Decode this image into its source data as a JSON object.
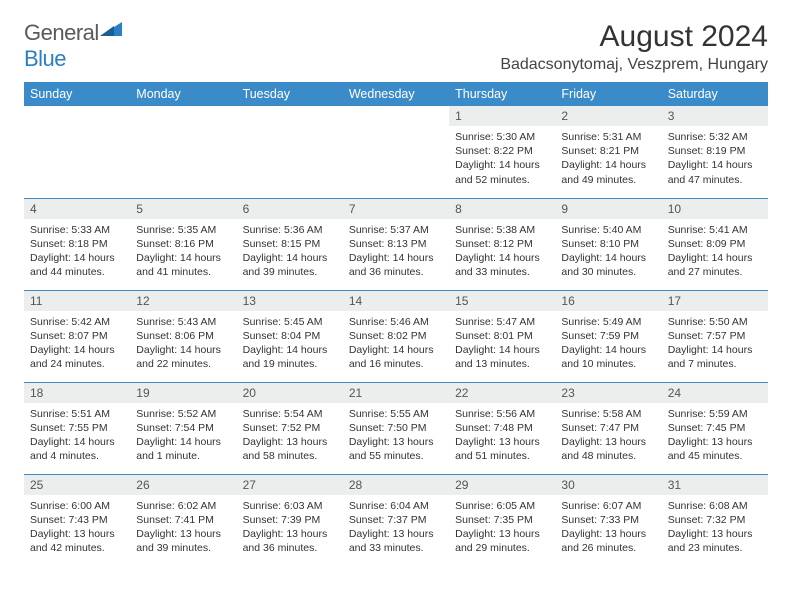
{
  "logo": {
    "text_part1": "General",
    "text_part2": "Blue"
  },
  "title": "August 2024",
  "location": "Badacsonytomaj, Veszprem, Hungary",
  "colors": {
    "header_bg": "#3b8bc9",
    "header_text": "#ffffff",
    "daynum_bg": "#eceded",
    "border": "#3b8bc9",
    "logo_gray": "#5a5a5a",
    "logo_blue": "#2b7fc3"
  },
  "day_headers": [
    "Sunday",
    "Monday",
    "Tuesday",
    "Wednesday",
    "Thursday",
    "Friday",
    "Saturday"
  ],
  "weeks": [
    [
      null,
      null,
      null,
      null,
      {
        "n": "1",
        "sr": "5:30 AM",
        "ss": "8:22 PM",
        "dl": "14 hours and 52 minutes."
      },
      {
        "n": "2",
        "sr": "5:31 AM",
        "ss": "8:21 PM",
        "dl": "14 hours and 49 minutes."
      },
      {
        "n": "3",
        "sr": "5:32 AM",
        "ss": "8:19 PM",
        "dl": "14 hours and 47 minutes."
      }
    ],
    [
      {
        "n": "4",
        "sr": "5:33 AM",
        "ss": "8:18 PM",
        "dl": "14 hours and 44 minutes."
      },
      {
        "n": "5",
        "sr": "5:35 AM",
        "ss": "8:16 PM",
        "dl": "14 hours and 41 minutes."
      },
      {
        "n": "6",
        "sr": "5:36 AM",
        "ss": "8:15 PM",
        "dl": "14 hours and 39 minutes."
      },
      {
        "n": "7",
        "sr": "5:37 AM",
        "ss": "8:13 PM",
        "dl": "14 hours and 36 minutes."
      },
      {
        "n": "8",
        "sr": "5:38 AM",
        "ss": "8:12 PM",
        "dl": "14 hours and 33 minutes."
      },
      {
        "n": "9",
        "sr": "5:40 AM",
        "ss": "8:10 PM",
        "dl": "14 hours and 30 minutes."
      },
      {
        "n": "10",
        "sr": "5:41 AM",
        "ss": "8:09 PM",
        "dl": "14 hours and 27 minutes."
      }
    ],
    [
      {
        "n": "11",
        "sr": "5:42 AM",
        "ss": "8:07 PM",
        "dl": "14 hours and 24 minutes."
      },
      {
        "n": "12",
        "sr": "5:43 AM",
        "ss": "8:06 PM",
        "dl": "14 hours and 22 minutes."
      },
      {
        "n": "13",
        "sr": "5:45 AM",
        "ss": "8:04 PM",
        "dl": "14 hours and 19 minutes."
      },
      {
        "n": "14",
        "sr": "5:46 AM",
        "ss": "8:02 PM",
        "dl": "14 hours and 16 minutes."
      },
      {
        "n": "15",
        "sr": "5:47 AM",
        "ss": "8:01 PM",
        "dl": "14 hours and 13 minutes."
      },
      {
        "n": "16",
        "sr": "5:49 AM",
        "ss": "7:59 PM",
        "dl": "14 hours and 10 minutes."
      },
      {
        "n": "17",
        "sr": "5:50 AM",
        "ss": "7:57 PM",
        "dl": "14 hours and 7 minutes."
      }
    ],
    [
      {
        "n": "18",
        "sr": "5:51 AM",
        "ss": "7:55 PM",
        "dl": "14 hours and 4 minutes."
      },
      {
        "n": "19",
        "sr": "5:52 AM",
        "ss": "7:54 PM",
        "dl": "14 hours and 1 minute."
      },
      {
        "n": "20",
        "sr": "5:54 AM",
        "ss": "7:52 PM",
        "dl": "13 hours and 58 minutes."
      },
      {
        "n": "21",
        "sr": "5:55 AM",
        "ss": "7:50 PM",
        "dl": "13 hours and 55 minutes."
      },
      {
        "n": "22",
        "sr": "5:56 AM",
        "ss": "7:48 PM",
        "dl": "13 hours and 51 minutes."
      },
      {
        "n": "23",
        "sr": "5:58 AM",
        "ss": "7:47 PM",
        "dl": "13 hours and 48 minutes."
      },
      {
        "n": "24",
        "sr": "5:59 AM",
        "ss": "7:45 PM",
        "dl": "13 hours and 45 minutes."
      }
    ],
    [
      {
        "n": "25",
        "sr": "6:00 AM",
        "ss": "7:43 PM",
        "dl": "13 hours and 42 minutes."
      },
      {
        "n": "26",
        "sr": "6:02 AM",
        "ss": "7:41 PM",
        "dl": "13 hours and 39 minutes."
      },
      {
        "n": "27",
        "sr": "6:03 AM",
        "ss": "7:39 PM",
        "dl": "13 hours and 36 minutes."
      },
      {
        "n": "28",
        "sr": "6:04 AM",
        "ss": "7:37 PM",
        "dl": "13 hours and 33 minutes."
      },
      {
        "n": "29",
        "sr": "6:05 AM",
        "ss": "7:35 PM",
        "dl": "13 hours and 29 minutes."
      },
      {
        "n": "30",
        "sr": "6:07 AM",
        "ss": "7:33 PM",
        "dl": "13 hours and 26 minutes."
      },
      {
        "n": "31",
        "sr": "6:08 AM",
        "ss": "7:32 PM",
        "dl": "13 hours and 23 minutes."
      }
    ]
  ],
  "labels": {
    "sunrise": "Sunrise:",
    "sunset": "Sunset:",
    "daylight": "Daylight:"
  }
}
